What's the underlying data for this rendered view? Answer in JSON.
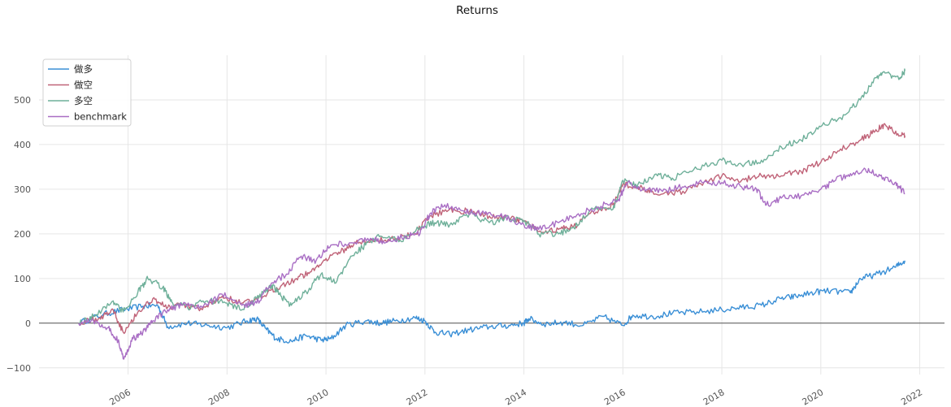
{
  "chart_data": {
    "type": "line",
    "title": "Returns",
    "xlabel": "",
    "ylabel": "",
    "xlim": [
      2004.2,
      2022.5
    ],
    "ylim": [
      -115,
      600
    ],
    "x_ticks": [
      2006,
      2008,
      2010,
      2012,
      2014,
      2016,
      2018,
      2020,
      2022
    ],
    "x_tick_labels": [
      "2006",
      "2008",
      "2010",
      "2012",
      "2014",
      "2016",
      "2018",
      "2020",
      "2022"
    ],
    "y_ticks": [
      -100,
      0,
      100,
      200,
      300,
      400,
      500
    ],
    "y_tick_labels": [
      "−100",
      "0",
      "100",
      "200",
      "300",
      "400",
      "500"
    ],
    "grid": true,
    "legend_position": "top-left",
    "zero_line": true,
    "series": [
      {
        "name": "做多",
        "color": "#3a8fd6",
        "points": [
          [
            2005.0,
            0
          ],
          [
            2005.5,
            20
          ],
          [
            2005.9,
            30
          ],
          [
            2006.3,
            38
          ],
          [
            2006.6,
            40
          ],
          [
            2006.8,
            -8
          ],
          [
            2007.2,
            0
          ],
          [
            2007.6,
            -5
          ],
          [
            2008.0,
            -10
          ],
          [
            2008.4,
            5
          ],
          [
            2008.6,
            10
          ],
          [
            2008.8,
            -15
          ],
          [
            2009.0,
            -35
          ],
          [
            2009.3,
            -40
          ],
          [
            2009.6,
            -28
          ],
          [
            2009.9,
            -38
          ],
          [
            2010.1,
            -35
          ],
          [
            2010.4,
            -5
          ],
          [
            2010.8,
            5
          ],
          [
            2011.1,
            0
          ],
          [
            2011.4,
            5
          ],
          [
            2011.8,
            12
          ],
          [
            2012.0,
            5
          ],
          [
            2012.2,
            -20
          ],
          [
            2012.5,
            -25
          ],
          [
            2012.9,
            -15
          ],
          [
            2013.3,
            -8
          ],
          [
            2013.7,
            -5
          ],
          [
            2014.0,
            0
          ],
          [
            2014.1,
            10
          ],
          [
            2014.4,
            -2
          ],
          [
            2014.8,
            2
          ],
          [
            2015.2,
            -5
          ],
          [
            2015.6,
            15
          ],
          [
            2016.0,
            -5
          ],
          [
            2016.2,
            18
          ],
          [
            2016.6,
            15
          ],
          [
            2017.0,
            22
          ],
          [
            2017.5,
            25
          ],
          [
            2018.0,
            30
          ],
          [
            2018.4,
            35
          ],
          [
            2018.8,
            40
          ],
          [
            2019.2,
            55
          ],
          [
            2019.5,
            60
          ],
          [
            2019.9,
            70
          ],
          [
            2020.2,
            72
          ],
          [
            2020.6,
            68
          ],
          [
            2020.8,
            100
          ],
          [
            2021.1,
            108
          ],
          [
            2021.5,
            125
          ],
          [
            2021.7,
            140
          ]
        ]
      },
      {
        "name": "做空",
        "color": "#c06378",
        "points": [
          [
            2005.0,
            0
          ],
          [
            2005.4,
            10
          ],
          [
            2005.7,
            30
          ],
          [
            2005.9,
            -20
          ],
          [
            2006.2,
            25
          ],
          [
            2006.5,
            55
          ],
          [
            2006.8,
            35
          ],
          [
            2007.1,
            40
          ],
          [
            2007.5,
            30
          ],
          [
            2007.9,
            60
          ],
          [
            2008.3,
            45
          ],
          [
            2008.7,
            55
          ],
          [
            2009.0,
            80
          ],
          [
            2009.4,
            100
          ],
          [
            2009.7,
            115
          ],
          [
            2010.0,
            145
          ],
          [
            2010.3,
            160
          ],
          [
            2010.6,
            180
          ],
          [
            2011.0,
            185
          ],
          [
            2011.4,
            190
          ],
          [
            2011.8,
            200
          ],
          [
            2012.1,
            240
          ],
          [
            2012.5,
            255
          ],
          [
            2012.9,
            250
          ],
          [
            2013.3,
            240
          ],
          [
            2013.7,
            235
          ],
          [
            2014.0,
            228
          ],
          [
            2014.3,
            205
          ],
          [
            2014.7,
            210
          ],
          [
            2015.0,
            215
          ],
          [
            2015.4,
            250
          ],
          [
            2015.8,
            265
          ],
          [
            2016.0,
            310
          ],
          [
            2016.3,
            305
          ],
          [
            2016.6,
            295
          ],
          [
            2017.0,
            290
          ],
          [
            2017.5,
            305
          ],
          [
            2018.0,
            330
          ],
          [
            2018.4,
            320
          ],
          [
            2018.8,
            330
          ],
          [
            2019.2,
            330
          ],
          [
            2019.6,
            340
          ],
          [
            2020.0,
            360
          ],
          [
            2020.4,
            390
          ],
          [
            2020.8,
            410
          ],
          [
            2021.1,
            430
          ],
          [
            2021.3,
            445
          ],
          [
            2021.6,
            420
          ],
          [
            2021.7,
            420
          ]
        ]
      },
      {
        "name": "多空",
        "color": "#6fb09a",
        "points": [
          [
            2005.0,
            0
          ],
          [
            2005.3,
            15
          ],
          [
            2005.7,
            50
          ],
          [
            2005.9,
            25
          ],
          [
            2006.2,
            70
          ],
          [
            2006.4,
            100
          ],
          [
            2006.7,
            80
          ],
          [
            2006.9,
            45
          ],
          [
            2007.2,
            35
          ],
          [
            2007.6,
            50
          ],
          [
            2008.0,
            45
          ],
          [
            2008.3,
            30
          ],
          [
            2008.6,
            55
          ],
          [
            2008.9,
            85
          ],
          [
            2009.1,
            60
          ],
          [
            2009.3,
            40
          ],
          [
            2009.6,
            70
          ],
          [
            2009.9,
            110
          ],
          [
            2010.2,
            90
          ],
          [
            2010.5,
            150
          ],
          [
            2010.8,
            175
          ],
          [
            2011.1,
            195
          ],
          [
            2011.5,
            185
          ],
          [
            2011.9,
            215
          ],
          [
            2012.2,
            225
          ],
          [
            2012.5,
            220
          ],
          [
            2012.9,
            245
          ],
          [
            2013.3,
            225
          ],
          [
            2013.7,
            235
          ],
          [
            2014.0,
            230
          ],
          [
            2014.3,
            200
          ],
          [
            2014.7,
            200
          ],
          [
            2015.0,
            215
          ],
          [
            2015.4,
            255
          ],
          [
            2015.8,
            255
          ],
          [
            2016.0,
            320
          ],
          [
            2016.3,
            310
          ],
          [
            2016.7,
            330
          ],
          [
            2017.0,
            325
          ],
          [
            2017.5,
            345
          ],
          [
            2018.0,
            365
          ],
          [
            2018.4,
            355
          ],
          [
            2018.8,
            365
          ],
          [
            2019.2,
            395
          ],
          [
            2019.6,
            410
          ],
          [
            2020.0,
            440
          ],
          [
            2020.4,
            460
          ],
          [
            2020.8,
            500
          ],
          [
            2021.1,
            550
          ],
          [
            2021.3,
            560
          ],
          [
            2021.6,
            550
          ],
          [
            2021.7,
            565
          ]
        ]
      },
      {
        "name": "benchmark",
        "color": "#a96ec4",
        "points": [
          [
            2005.0,
            0
          ],
          [
            2005.3,
            5
          ],
          [
            2005.6,
            -10
          ],
          [
            2005.8,
            -40
          ],
          [
            2005.9,
            -80
          ],
          [
            2006.1,
            -35
          ],
          [
            2006.3,
            -20
          ],
          [
            2006.5,
            5
          ],
          [
            2006.8,
            30
          ],
          [
            2007.1,
            40
          ],
          [
            2007.5,
            35
          ],
          [
            2007.9,
            65
          ],
          [
            2008.3,
            40
          ],
          [
            2008.6,
            45
          ],
          [
            2008.9,
            90
          ],
          [
            2009.2,
            110
          ],
          [
            2009.5,
            150
          ],
          [
            2009.8,
            140
          ],
          [
            2010.1,
            175
          ],
          [
            2010.5,
            180
          ],
          [
            2010.9,
            190
          ],
          [
            2011.2,
            180
          ],
          [
            2011.6,
            195
          ],
          [
            2011.9,
            200
          ],
          [
            2012.1,
            245
          ],
          [
            2012.4,
            265
          ],
          [
            2012.8,
            250
          ],
          [
            2013.2,
            245
          ],
          [
            2013.6,
            240
          ],
          [
            2014.0,
            220
          ],
          [
            2014.3,
            210
          ],
          [
            2014.7,
            225
          ],
          [
            2015.1,
            245
          ],
          [
            2015.5,
            260
          ],
          [
            2015.9,
            275
          ],
          [
            2016.1,
            315
          ],
          [
            2016.4,
            300
          ],
          [
            2016.8,
            295
          ],
          [
            2017.2,
            305
          ],
          [
            2017.6,
            315
          ],
          [
            2018.0,
            315
          ],
          [
            2018.4,
            305
          ],
          [
            2018.7,
            300
          ],
          [
            2018.9,
            265
          ],
          [
            2019.2,
            280
          ],
          [
            2019.6,
            285
          ],
          [
            2020.0,
            300
          ],
          [
            2020.3,
            320
          ],
          [
            2020.6,
            335
          ],
          [
            2020.9,
            345
          ],
          [
            2021.2,
            330
          ],
          [
            2021.5,
            315
          ],
          [
            2021.7,
            290
          ]
        ]
      }
    ]
  }
}
